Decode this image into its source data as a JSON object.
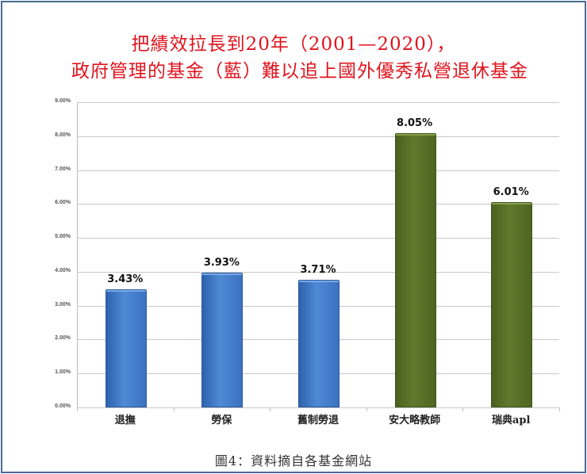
{
  "chart_data": {
    "type": "bar",
    "title": "把績效拉長到20年（2001—2020），",
    "subtitle": "政府管理的基金（藍）難以追上國外優秀私營退休基金",
    "categories": [
      "退撫",
      "勞保",
      "舊制勞退",
      "安大略教師",
      "瑞典apl"
    ],
    "values": [
      3.43,
      3.93,
      3.71,
      8.05,
      6.01
    ],
    "value_labels": [
      "3.43%",
      "3.93%",
      "3.71%",
      "8.05%",
      "6.01%"
    ],
    "bar_colors": [
      "#3b72c0",
      "#3b72c0",
      "#3b72c0",
      "#5a732a",
      "#5a732a"
    ],
    "xlabel": "",
    "ylabel": "",
    "ylim": [
      0,
      9
    ],
    "yticks": [
      "0.00%",
      "1.00%",
      "2.00%",
      "3.00%",
      "4.00%",
      "5.00%",
      "6.00%",
      "7.00%",
      "8.00%",
      "9.00%"
    ],
    "grid": true,
    "legend": null,
    "caption": "圖4：資料摘自各基金網站"
  },
  "colors": {
    "title": "#e0141e",
    "government_fund": "#3b72c0",
    "private_fund": "#5a732a",
    "frame": "#4a6b93"
  }
}
